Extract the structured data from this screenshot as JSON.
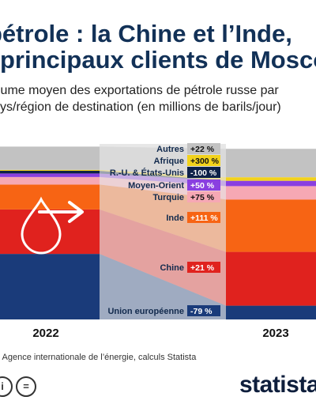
{
  "header": {
    "title_line1": "pétrole : la Chine et l’Inde,",
    "title_line2": "principaux clients de Moscou",
    "subtitle_line1": "lume moyen des exportations de pétrole russe par",
    "subtitle_line2": "ys/région de destination (en millions de barils/jour)"
  },
  "chart_data": {
    "type": "bar",
    "stacked": true,
    "categories": [
      "2022",
      "2023"
    ],
    "series": [
      {
        "name": "Union européenne",
        "values": [
          2.95,
          0.62
        ],
        "change": "-79 %",
        "color": "#1a3b7a",
        "badge": "#1a3b7a"
      },
      {
        "name": "Chine",
        "values": [
          2.0,
          2.42
        ],
        "change": "+21 %",
        "color": "#e0221e",
        "badge": "#e0221e"
      },
      {
        "name": "Inde",
        "values": [
          1.12,
          2.36
        ],
        "change": "+111 %",
        "color": "#f76414",
        "badge": "#f76414"
      },
      {
        "name": "Turquie",
        "values": [
          0.34,
          0.6
        ],
        "change": "+75 %",
        "color": "#f6a8b4",
        "badge": "#f6a8b4"
      },
      {
        "name": "Moyen-Orient",
        "values": [
          0.16,
          0.24
        ],
        "change": "+50 %",
        "color": "#8a3fe0",
        "badge": "#8a3fe0"
      },
      {
        "name": "R.-U. & États-Unis",
        "values": [
          0.12,
          0.0
        ],
        "change": "-100 %",
        "color": "#0d2148",
        "badge": "#0d2148"
      },
      {
        "name": "Afrique",
        "values": [
          0.04,
          0.16
        ],
        "change": "+300 %",
        "color": "#f2d21c",
        "badge": "#f2d21c"
      },
      {
        "name": "Autres",
        "values": [
          1.05,
          1.28
        ],
        "change": "+22 %",
        "color": "#c2c2c2",
        "badge": "#c2c2c2"
      }
    ]
  },
  "footer": {
    "source": ": Agence internationale de l’énergie, calculs Statista",
    "brand": "statista",
    "cc_icons": [
      "i",
      "="
    ]
  }
}
